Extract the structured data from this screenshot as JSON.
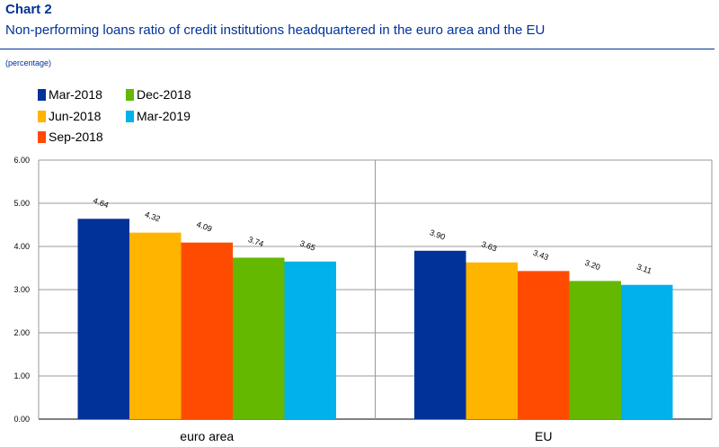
{
  "header": {
    "chart_number": "Chart 2",
    "title": "Non-performing loans ratio of credit institutions headquartered in the euro area and the EU",
    "unit": "(percentage)"
  },
  "colors": {
    "Mar-2018": "#003299",
    "Jun-2018": "#FFB400",
    "Sep-2018": "#FF4B00",
    "Dec-2018": "#65B800",
    "Mar-2019": "#00B1EA"
  },
  "chart_data": {
    "type": "bar",
    "categories": [
      "euro area",
      "EU"
    ],
    "series": [
      {
        "name": "Mar-2018",
        "values": [
          4.64,
          3.9
        ]
      },
      {
        "name": "Jun-2018",
        "values": [
          4.32,
          3.63
        ]
      },
      {
        "name": "Sep-2018",
        "values": [
          4.09,
          3.43
        ]
      },
      {
        "name": "Dec-2018",
        "values": [
          3.74,
          3.2
        ]
      },
      {
        "name": "Mar-2019",
        "values": [
          3.65,
          3.11
        ]
      }
    ],
    "data_labels": [
      [
        "4.64",
        "4.32",
        "4.09",
        "3.74",
        "3.65"
      ],
      [
        "3.90",
        "3.63",
        "3.43",
        "3.20",
        "3.11"
      ]
    ],
    "ylim": [
      0,
      6
    ],
    "yticks": [
      "0.00",
      "1.00",
      "2.00",
      "3.00",
      "4.00",
      "5.00",
      "6.00"
    ],
    "legend_order": [
      "Mar-2018",
      "Dec-2018",
      "Jun-2018",
      "Mar-2019",
      "Sep-2018"
    ],
    "legend_position": "top-left",
    "grid": true
  }
}
